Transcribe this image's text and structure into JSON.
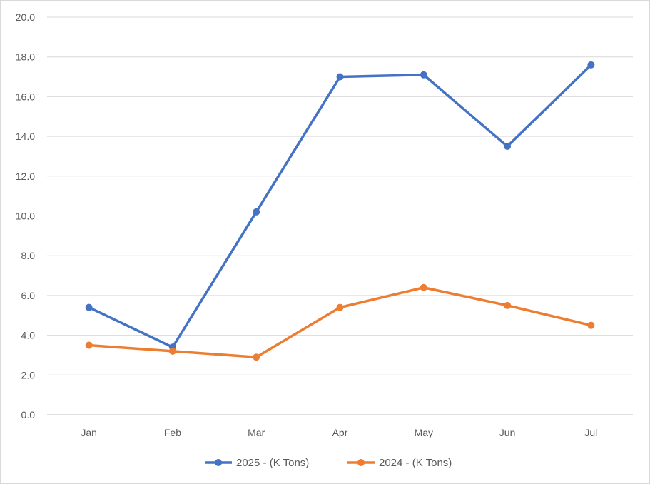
{
  "chart_data": {
    "type": "line",
    "title": "",
    "xlabel": "",
    "ylabel": "",
    "categories": [
      "Jan",
      "Feb",
      "Mar",
      "Apr",
      "May",
      "Jun",
      "Jul"
    ],
    "ylim": [
      0,
      20
    ],
    "ytick_step": 2,
    "yticks": [
      "0.0",
      "2.0",
      "4.0",
      "6.0",
      "8.0",
      "10.0",
      "12.0",
      "14.0",
      "16.0",
      "18.0",
      "20.0"
    ],
    "grid": true,
    "legend_position": "bottom",
    "series": [
      {
        "name": "2025 - (K Tons)",
        "color": "#4472c4",
        "values": [
          5.4,
          3.4,
          10.2,
          17.0,
          17.1,
          13.5,
          17.6
        ]
      },
      {
        "name": "2024 - (K Tons)",
        "color": "#ed7d31",
        "values": [
          3.5,
          3.2,
          2.9,
          5.4,
          6.4,
          5.5,
          4.5
        ]
      }
    ]
  }
}
